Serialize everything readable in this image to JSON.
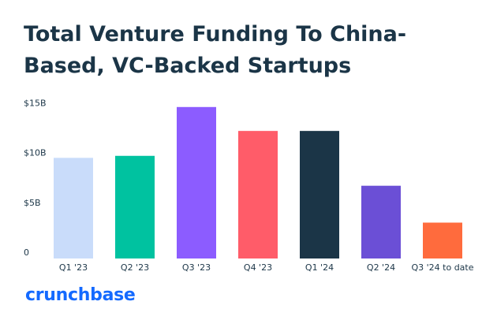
{
  "chart_data": {
    "type": "bar",
    "title": "Total Venture Funding To China-Based, VC-Backed Startups",
    "brand": "crunchbase",
    "categories": [
      "Q1 '23",
      "Q2 '23",
      "Q3 '23",
      "Q4 '23",
      "Q1 '24",
      "Q2 '24",
      "Q3 '24 to date"
    ],
    "values": [
      10.1,
      10.3,
      15.2,
      12.8,
      12.8,
      7.3,
      3.6
    ],
    "colors": [
      "#c9dcfa",
      "#00c2a0",
      "#8c5cff",
      "#ff5c69",
      "#1b3547",
      "#6b4fd6",
      "#ff6b3d"
    ],
    "ylim": [
      0,
      15.5
    ],
    "yticks": [
      0,
      {
        "value": 5,
        "label": "$5B"
      },
      {
        "value": 10,
        "label": "$10B"
      },
      {
        "value": 15,
        "label": "$15B"
      }
    ],
    "grid": false
  }
}
